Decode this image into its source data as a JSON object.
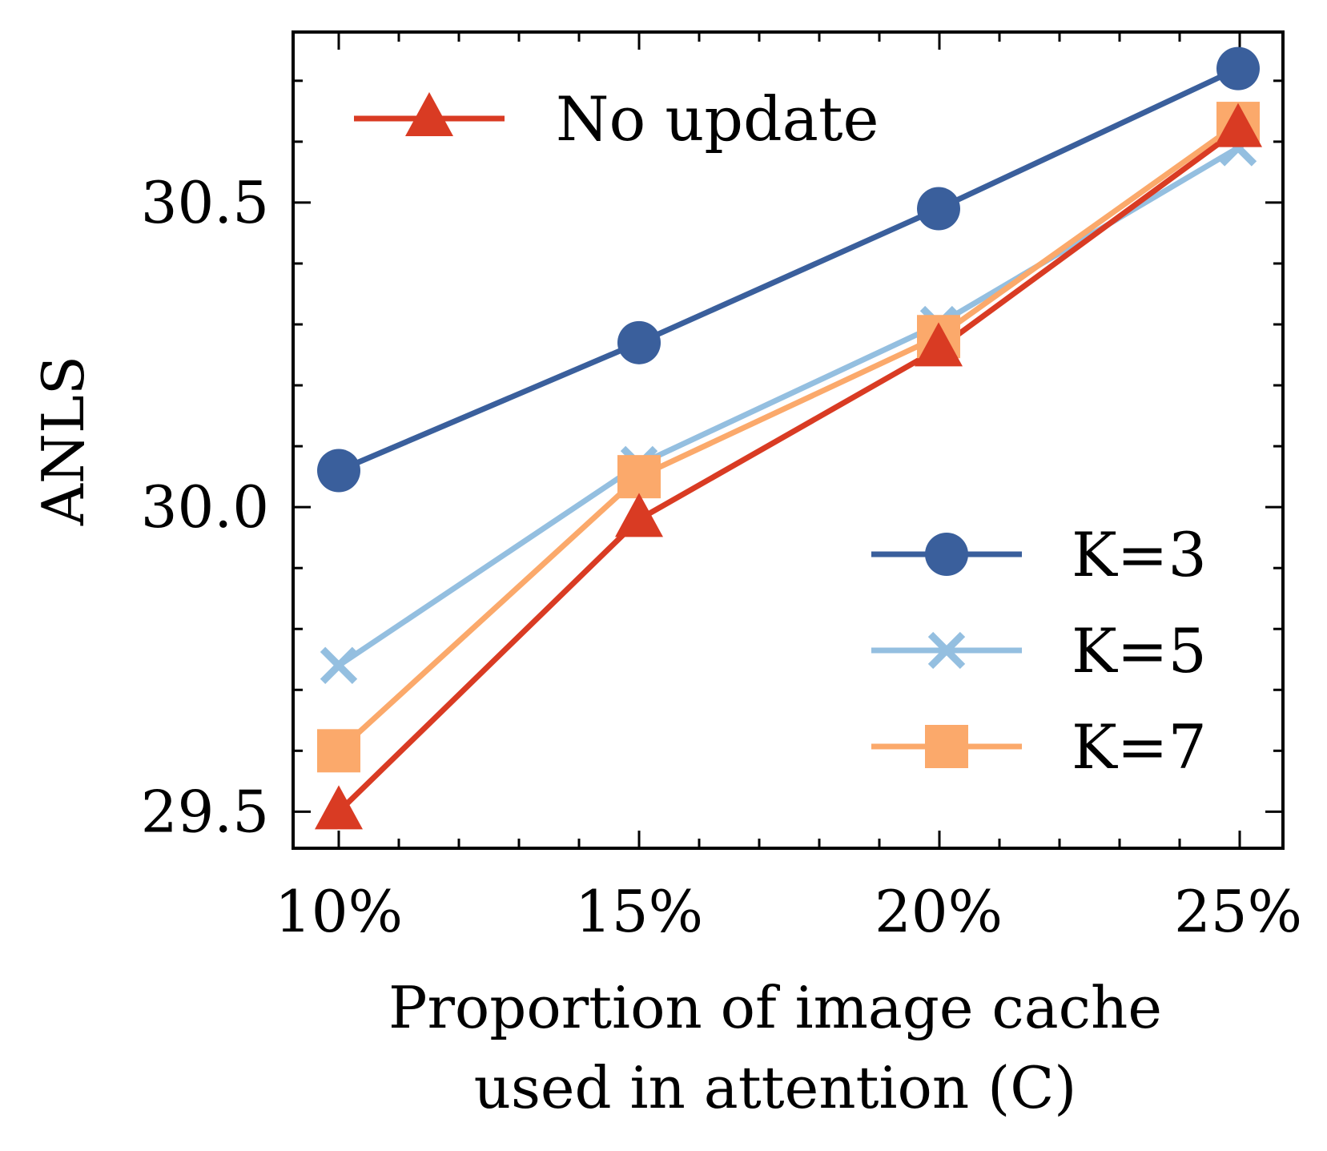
{
  "chart_data": {
    "type": "line",
    "title": "",
    "xlabel_lines": [
      "Proportion of image cache",
      "used in attention (C)"
    ],
    "ylabel": "ANLS",
    "categories": [
      "10%",
      "15%",
      "20%",
      "25%"
    ],
    "ylim": [
      29.44,
      30.78
    ],
    "yticks_major": [
      "29.5",
      "30.0",
      "30.5"
    ],
    "series": [
      {
        "name": "K=3",
        "marker": "circle",
        "color": "#3a5f9c",
        "values": [
          30.06,
          30.27,
          30.49,
          30.72
        ]
      },
      {
        "name": "K=5",
        "marker": "x",
        "color": "#94bfe0",
        "values": [
          29.74,
          30.07,
          30.3,
          30.59
        ]
      },
      {
        "name": "K=7",
        "marker": "square",
        "color": "#fba96b",
        "values": [
          29.6,
          30.05,
          30.28,
          30.63
        ]
      },
      {
        "name": "No update",
        "marker": "triangle",
        "color": "#d93b23",
        "values": [
          29.5,
          29.98,
          30.26,
          30.62
        ]
      }
    ],
    "legend_top": [
      "No update"
    ],
    "legend_bottom_right": [
      "K=3",
      "K=5",
      "K=7"
    ]
  }
}
